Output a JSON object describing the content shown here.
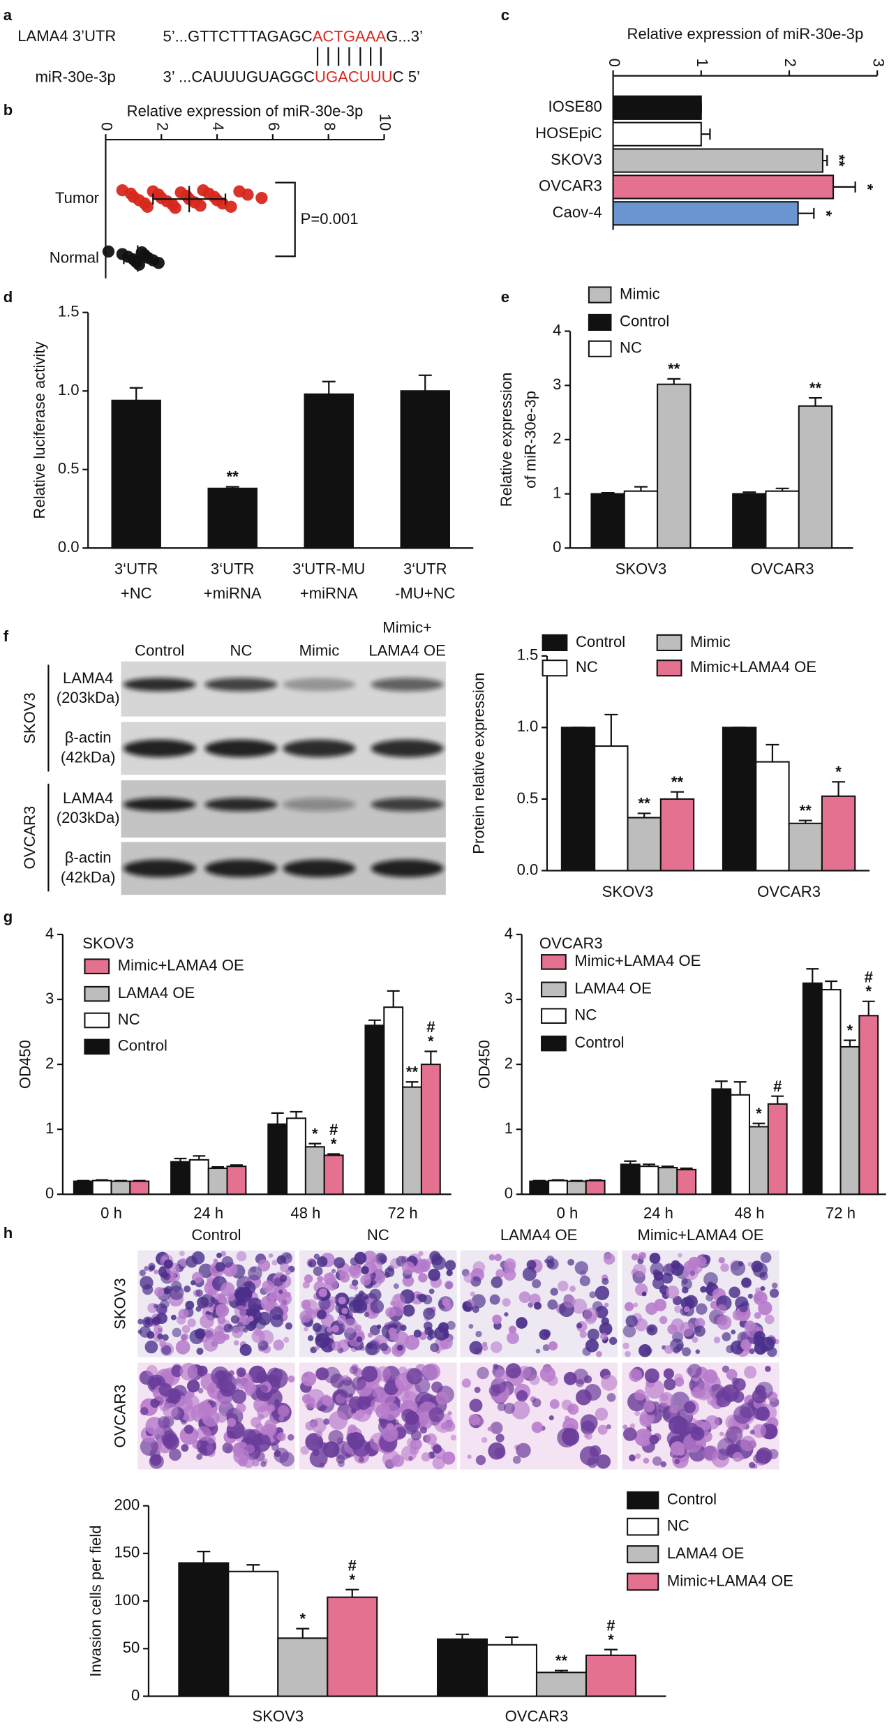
{
  "panel_labels": [
    "a",
    "b",
    "c",
    "d",
    "e",
    "f",
    "g",
    "h"
  ],
  "sequence_alignment": {
    "rows": [
      {
        "label": "LAMA4 3’UTR",
        "sequence": [
          "5’...GTTCTTTAGAGC",
          "ACTGAAA",
          "G...3’"
        ]
      },
      {
        "label": "miR-30e-3p",
        "sequence": [
          "3’ ...CAUUUGUAGGC",
          "UGACUUU",
          "C 5’"
        ]
      }
    ]
  },
  "western_blot": {
    "columns": [
      [
        "Control"
      ],
      [
        "NC"
      ],
      [
        "Mimic"
      ],
      [
        "Mimic+",
        "LAMA4 OE"
      ]
    ],
    "rows": [
      {
        "cell_line": "SKOV3",
        "bands": [
          {
            "protein": "LAMA4",
            "size": "(203kDa)"
          },
          {
            "protein": "β-actin",
            "size": "(42kDa)"
          }
        ]
      },
      {
        "cell_line": "OVCAR3",
        "bands": [
          {
            "protein": "LAMA4",
            "size": "(203kDa)"
          },
          {
            "protein": "β-actin",
            "size": "(42kDa)"
          }
        ]
      }
    ]
  },
  "invasion_images": {
    "columns": [
      "Control",
      "NC",
      "LAMA4 OE",
      "Mimic+LAMA4 OE"
    ],
    "rows": [
      "SKOV3",
      "OVCAR3"
    ]
  },
  "chart_data": [
    {
      "type": "strip",
      "xlabel": "Relative expression of miR-30e-3p",
      "xlim": [
        0,
        10
      ],
      "xticks": [
        0,
        2,
        4,
        6,
        8,
        10
      ],
      "categories": [
        "Tumor",
        "Normal"
      ],
      "values": [
        [
          0.6,
          0.9,
          1.0,
          1.2,
          1.4,
          1.5,
          1.7,
          1.9,
          2.0,
          2.2,
          2.4,
          2.5,
          2.7,
          2.9,
          3.0,
          3.2,
          3.4,
          3.5,
          3.7,
          3.9,
          4.0,
          4.2,
          4.5,
          4.8,
          5.1,
          5.6
        ],
        [
          0.1,
          0.6,
          0.8,
          1.0,
          1.1,
          1.2,
          1.3,
          1.4,
          1.5,
          1.7,
          1.9
        ]
      ],
      "colors": [
        "#d8281e",
        "#111111"
      ],
      "means": [
        3.0,
        1.15
      ],
      "sds": [
        1.3,
        0.5
      ],
      "annotation": "P=0.001"
    },
    {
      "type": "hbar",
      "xlabel": "Relative expression of miR-30e-3p",
      "xlim": [
        0,
        3
      ],
      "xticks": [
        0,
        1,
        2,
        3
      ],
      "categories": [
        "IOSE80",
        "HOSEpiC",
        "SKOV3",
        "OVCAR3",
        "Caov-4"
      ],
      "values": [
        1.0,
        1.0,
        2.38,
        2.5,
        2.1
      ],
      "errors": [
        0,
        0.1,
        0.05,
        0.25,
        0.18
      ],
      "colors": [
        "#111111",
        "#ffffff",
        "#bdbdbd",
        "#e3718f",
        "#6a95d0"
      ],
      "annotations": [
        null,
        null,
        [
          "**"
        ],
        [
          "*"
        ],
        [
          "*"
        ]
      ]
    },
    {
      "type": "bar",
      "ylabel": "Relative luciferase activity",
      "ylim": [
        0,
        1.5
      ],
      "yticks": [
        {
          "value": 0,
          "label": "0.0"
        },
        0.5,
        {
          "value": 1,
          "label": "1.0"
        },
        1.5
      ],
      "categories": [
        [
          "3‘UTR",
          "+NC"
        ],
        [
          "3‘UTR",
          "+miRNA"
        ],
        [
          "3‘UTR-MU",
          "+miRNA"
        ],
        [
          "3‘UTR",
          "-MU+NC"
        ]
      ],
      "values": [
        0.94,
        0.38,
        0.98,
        1.0
      ],
      "errors": [
        0.08,
        0.01,
        0.08,
        0.1
      ],
      "color": "#111111",
      "annotations": [
        null,
        [
          "**"
        ],
        null,
        null
      ]
    },
    {
      "type": "grouped_bar",
      "ylabel": [
        "Relative expression",
        "of miR-30e-3p"
      ],
      "ylim": [
        0,
        4
      ],
      "yticks": [
        0,
        1,
        2,
        3,
        4
      ],
      "categories": [
        "SKOV3",
        "OVCAR3"
      ],
      "series": [
        {
          "name": "Control",
          "color": "#111111",
          "values": [
            1.0,
            1.0
          ],
          "errors": [
            0.02,
            0.03
          ]
        },
        {
          "name": "NC",
          "color": "#ffffff",
          "values": [
            1.05,
            1.05
          ],
          "errors": [
            0.08,
            0.05
          ]
        },
        {
          "name": "Mimic",
          "color": "#bdbdbd",
          "values": [
            3.02,
            2.62
          ],
          "errors": [
            0.1,
            0.15
          ],
          "annotations": [
            [
              "**"
            ],
            [
              "**"
            ]
          ]
        }
      ]
    },
    {
      "type": "grouped_bar",
      "ylabel": "Protein relative expression",
      "ylim": [
        0,
        1.5
      ],
      "yticks": [
        {
          "value": 0,
          "label": "0.0"
        },
        0.5,
        {
          "value": 1,
          "label": "1.0"
        },
        1.5
      ],
      "categories": [
        "SKOV3",
        "OVCAR3"
      ],
      "series": [
        {
          "name": "Control",
          "color": "#111111",
          "values": [
            1.0,
            1.0
          ],
          "errors": [
            0,
            0
          ]
        },
        {
          "name": "NC",
          "color": "#ffffff",
          "values": [
            0.87,
            0.76
          ],
          "errors": [
            0.22,
            0.12
          ]
        },
        {
          "name": "Mimic",
          "color": "#bdbdbd",
          "values": [
            0.37,
            0.33
          ],
          "errors": [
            0.03,
            0.02
          ],
          "annotations": [
            [
              "**"
            ],
            [
              "**"
            ]
          ]
        },
        {
          "name": "Mimic+LAMA4 OE",
          "color": "#e3718f",
          "values": [
            0.5,
            0.52
          ],
          "errors": [
            0.05,
            0.1
          ],
          "annotations": [
            [
              "**"
            ],
            [
              "*"
            ]
          ]
        }
      ]
    },
    {
      "type": "grouped_bar",
      "title": "SKOV3",
      "ylabel": "OD450",
      "ylim": [
        0,
        4
      ],
      "yticks": [
        0,
        1,
        2,
        3,
        4
      ],
      "categories": [
        "0 h",
        "24 h",
        "48 h",
        "72 h"
      ],
      "series": [
        {
          "name": "Control",
          "color": "#111111",
          "values": [
            0.2,
            0.5,
            1.08,
            2.6
          ],
          "errors": [
            0.01,
            0.05,
            0.17,
            0.08
          ]
        },
        {
          "name": "NC",
          "color": "#ffffff",
          "values": [
            0.21,
            0.53,
            1.17,
            2.88
          ],
          "errors": [
            0.01,
            0.06,
            0.1,
            0.25
          ]
        },
        {
          "name": "LAMA4 OE",
          "color": "#bdbdbd",
          "values": [
            0.2,
            0.4,
            0.73,
            1.65
          ],
          "errors": [
            0.01,
            0.02,
            0.05,
            0.08
          ],
          "annotations": [
            null,
            null,
            [
              "*"
            ],
            [
              "**"
            ]
          ]
        },
        {
          "name": "Mimic+LAMA4 OE",
          "color": "#e3718f",
          "values": [
            0.2,
            0.43,
            0.6,
            2.0
          ],
          "errors": [
            0.01,
            0.02,
            0.02,
            0.2
          ],
          "annotations": [
            null,
            null,
            [
              "#",
              "*"
            ],
            [
              "#",
              "*"
            ]
          ]
        }
      ]
    },
    {
      "type": "grouped_bar",
      "title": "OVCAR3",
      "ylabel": "OD450",
      "ylim": [
        0,
        4
      ],
      "yticks": [
        0,
        1,
        2,
        3,
        4
      ],
      "categories": [
        "0 h",
        "24 h",
        "48 h",
        "72 h"
      ],
      "series": [
        {
          "name": "Control",
          "color": "#111111",
          "values": [
            0.2,
            0.46,
            1.62,
            3.25
          ],
          "errors": [
            0.01,
            0.05,
            0.12,
            0.22
          ]
        },
        {
          "name": "NC",
          "color": "#ffffff",
          "values": [
            0.21,
            0.43,
            1.53,
            3.15
          ],
          "errors": [
            0.01,
            0.03,
            0.2,
            0.13
          ]
        },
        {
          "name": "LAMA4 OE",
          "color": "#bdbdbd",
          "values": [
            0.2,
            0.41,
            1.04,
            2.27
          ],
          "errors": [
            0.01,
            0.02,
            0.05,
            0.1
          ],
          "annotations": [
            null,
            null,
            [
              "*"
            ],
            [
              "*"
            ]
          ]
        },
        {
          "name": "Mimic+LAMA4 OE",
          "color": "#e3718f",
          "values": [
            0.21,
            0.38,
            1.39,
            2.75
          ],
          "errors": [
            0.01,
            0.02,
            0.12,
            0.22
          ],
          "annotations": [
            null,
            null,
            [
              "#"
            ],
            [
              "#",
              "*"
            ]
          ]
        }
      ]
    },
    {
      "type": "grouped_bar",
      "ylabel": "Invasion cells per field",
      "ylim": [
        0,
        200
      ],
      "yticks": [
        0,
        50,
        100,
        150,
        200
      ],
      "categories": [
        "SKOV3",
        "OVCAR3"
      ],
      "series": [
        {
          "name": "Control",
          "color": "#111111",
          "values": [
            140,
            60
          ],
          "errors": [
            12,
            5
          ]
        },
        {
          "name": "NC",
          "color": "#ffffff",
          "values": [
            131,
            54
          ],
          "errors": [
            7,
            8
          ]
        },
        {
          "name": "LAMA4 OE",
          "color": "#bdbdbd",
          "values": [
            61,
            25
          ],
          "errors": [
            10,
            2
          ],
          "annotations": [
            [
              "*"
            ],
            [
              "**"
            ]
          ]
        },
        {
          "name": "Mimic+LAMA4 OE",
          "color": "#e3718f",
          "values": [
            104,
            43
          ],
          "errors": [
            8,
            6
          ],
          "annotations": [
            [
              "#",
              "*"
            ],
            [
              "#",
              "*"
            ]
          ]
        }
      ]
    }
  ]
}
